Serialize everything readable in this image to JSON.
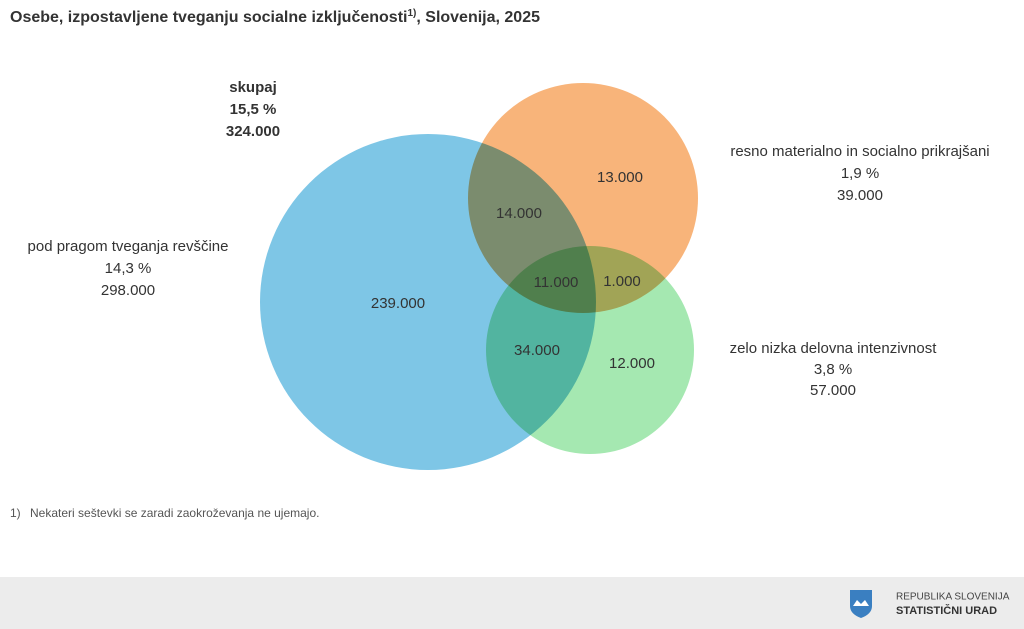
{
  "title": {
    "text": "Osebe, izpostavljene tveganju socialne izključenosti",
    "note_ref": "1)",
    "suffix": ", Slovenija, 2025"
  },
  "total": {
    "label": "skupaj",
    "percent": "15,5 %",
    "count": "324.000"
  },
  "sets": [
    {
      "label": "pod pragom tveganja revščine",
      "percent": "14,3 %",
      "count": "298.000"
    },
    {
      "label": "resno materialno in socialno prikrajšani",
      "percent": "1,9 %",
      "count": "39.000"
    },
    {
      "label": "zelo nizka delovna intenzivnost",
      "percent": "3,8 %",
      "count": "57.000"
    }
  ],
  "regions": [
    "239.000",
    "14.000",
    "13.000",
    "11.000",
    "1.000",
    "34.000",
    "12.000"
  ],
  "footnote": {
    "ref": "1)",
    "text": "Nekateri seštevki se zaradi zaokroževanja ne ujemajo."
  },
  "footer": {
    "line1": "REPUBLIKA SLOVENIJA",
    "line2": "STATISTIČNI URAD"
  }
}
